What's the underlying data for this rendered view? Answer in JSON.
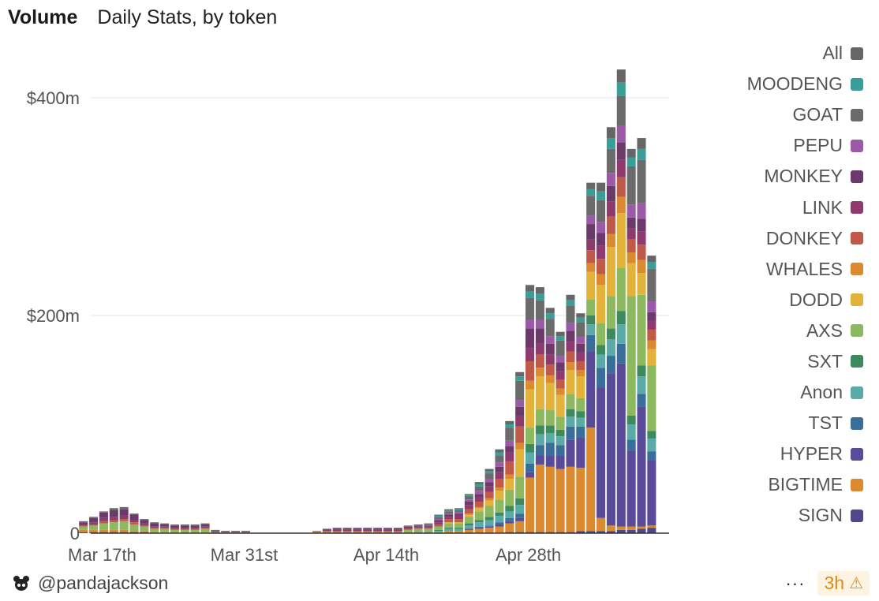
{
  "header": {
    "title": "Volume",
    "subtitle": "Daily Stats, by token"
  },
  "footer": {
    "author": "@pandajackson",
    "more_label": "···",
    "staleness": "3h",
    "warn_icon": "warning-icon"
  },
  "colors": {
    "All": "#666666",
    "MOODENG": "#3a9e98",
    "GOAT": "#6b6b6b",
    "PEPU": "#9b59a7",
    "MONKEY": "#6b3a6b",
    "LINK": "#8e3a6e",
    "DONKEY": "#c05a48",
    "WHALES": "#dc8a30",
    "DODD": "#e2b23a",
    "AXS": "#8cb860",
    "SXT": "#3e8a5e",
    "Anon": "#5aaaa8",
    "TST": "#3a6e9a",
    "HYPER": "#5a4a9a",
    "BIGTIME": "#dc8a30",
    "SIGN": "#4e4a8a"
  },
  "chart_data": {
    "type": "bar",
    "stacked": true,
    "title": "Volume",
    "subtitle": "Daily Stats, by token",
    "y_ticks": [
      {
        "value": 0,
        "label": "0"
      },
      {
        "value": 200,
        "label": "$200m"
      },
      {
        "value": 400,
        "label": "$400m"
      }
    ],
    "ylim": [
      0,
      400
    ],
    "y_unit": "$m",
    "grid": true,
    "legend_position": "right",
    "x_ticks": [
      {
        "day": 0,
        "label": "Mar 17th"
      },
      {
        "day": 14,
        "label": "Mar 31st"
      },
      {
        "day": 28,
        "label": "Apr 14th"
      },
      {
        "day": 42,
        "label": "Apr 28th"
      }
    ],
    "x_start": "Mar 15",
    "x_end": "May 10",
    "legend": [
      "All",
      "MOODENG",
      "GOAT",
      "PEPU",
      "MONKEY",
      "LINK",
      "DONKEY",
      "WHALES",
      "DODD",
      "AXS",
      "SXT",
      "Anon",
      "TST",
      "HYPER",
      "BIGTIME",
      "SIGN"
    ],
    "categories": [
      "Mar 15",
      "Mar 16",
      "Mar 17",
      "Mar 18",
      "Mar 19",
      "Mar 20",
      "Mar 21",
      "Mar 22",
      "Mar 23",
      "Mar 24",
      "Mar 25",
      "Mar 26",
      "Mar 27",
      "Mar 28",
      "Mar 29",
      "Mar 30",
      "Mar 31",
      "Apr 1",
      "Apr 2",
      "Apr 3",
      "Apr 4",
      "Apr 5",
      "Apr 6",
      "Apr 7",
      "Apr 8",
      "Apr 9",
      "Apr 10",
      "Apr 11",
      "Apr 12",
      "Apr 13",
      "Apr 14",
      "Apr 15",
      "Apr 16",
      "Apr 17",
      "Apr 18",
      "Apr 19",
      "Apr 20",
      "Apr 21",
      "Apr 22",
      "Apr 23",
      "Apr 24",
      "Apr 25",
      "Apr 26",
      "Apr 27",
      "Apr 28",
      "Apr 29",
      "Apr 30",
      "May 1",
      "May 2",
      "May 3",
      "May 4",
      "May 5",
      "May 6",
      "May 7",
      "May 8",
      "May 9",
      "May 10"
    ],
    "series": [
      {
        "name": "SIGN",
        "values": [
          1,
          1,
          1,
          1,
          1,
          1,
          1,
          0,
          0,
          0,
          0,
          0,
          0,
          0,
          0,
          0,
          0,
          0,
          0,
          0,
          0,
          0,
          0,
          0,
          0,
          0,
          0,
          0,
          0,
          0,
          0,
          0,
          0,
          0,
          0,
          0,
          0,
          0,
          0,
          0,
          0,
          0,
          1,
          1,
          1,
          1,
          1,
          1,
          1,
          2,
          2,
          2,
          2,
          3,
          3,
          4,
          5
        ]
      },
      {
        "name": "BIGTIME",
        "values": [
          2,
          2,
          2,
          2,
          2,
          1,
          1,
          1,
          1,
          1,
          1,
          1,
          1,
          0,
          0,
          0,
          0,
          0,
          0,
          0,
          0,
          0,
          0,
          0,
          0,
          0,
          0,
          0,
          0,
          0,
          0,
          0,
          1,
          1,
          1,
          1,
          2,
          2,
          3,
          4,
          5,
          6,
          8,
          10,
          50,
          62,
          60,
          58,
          60,
          58,
          95,
          12,
          5,
          3,
          3,
          2,
          2
        ]
      },
      {
        "name": "HYPER",
        "values": [
          0,
          0,
          0,
          0,
          0,
          0,
          0,
          0,
          0,
          0,
          0,
          0,
          0,
          0,
          0,
          0,
          0,
          0,
          0,
          0,
          0,
          0,
          0,
          0,
          0,
          0,
          0,
          0,
          0,
          0,
          0,
          0,
          0,
          0,
          0,
          0,
          0,
          0,
          1,
          1,
          1,
          2,
          2,
          3,
          5,
          8,
          10,
          12,
          25,
          28,
          70,
          120,
          140,
          150,
          70,
          110,
          60
        ]
      },
      {
        "name": "TST",
        "values": [
          0,
          0,
          0,
          0,
          0,
          0,
          0,
          0,
          0,
          0,
          0,
          0,
          0,
          0,
          0,
          0,
          0,
          0,
          0,
          0,
          0,
          0,
          0,
          0,
          0,
          0,
          0,
          0,
          0,
          0,
          0,
          0,
          0,
          0,
          0,
          0,
          0,
          0,
          0,
          1,
          1,
          2,
          3,
          4,
          8,
          10,
          12,
          10,
          12,
          10,
          15,
          18,
          16,
          18,
          10,
          12,
          8
        ]
      },
      {
        "name": "Anon",
        "values": [
          0,
          0,
          0,
          0,
          0,
          0,
          0,
          0,
          0,
          0,
          0,
          0,
          0,
          0,
          0,
          0,
          0,
          0,
          0,
          0,
          0,
          0,
          0,
          0,
          0,
          0,
          0,
          0,
          0,
          0,
          0,
          0,
          0,
          1,
          1,
          1,
          2,
          2,
          3,
          4,
          5,
          6,
          6,
          8,
          10,
          10,
          9,
          8,
          9,
          8,
          10,
          12,
          15,
          18,
          14,
          16,
          12
        ]
      },
      {
        "name": "SXT",
        "values": [
          0,
          0,
          0,
          0,
          0,
          0,
          0,
          0,
          0,
          0,
          0,
          0,
          0,
          0,
          0,
          0,
          0,
          0,
          0,
          0,
          0,
          0,
          0,
          0,
          0,
          0,
          0,
          0,
          0,
          0,
          0,
          0,
          0,
          0,
          0,
          1,
          1,
          1,
          2,
          2,
          3,
          3,
          5,
          6,
          8,
          8,
          7,
          6,
          7,
          6,
          8,
          9,
          10,
          12,
          8,
          10,
          7
        ]
      },
      {
        "name": "AXS",
        "values": [
          3,
          4,
          6,
          7,
          8,
          6,
          4,
          3,
          3,
          2,
          2,
          2,
          3,
          1,
          1,
          1,
          1,
          0,
          0,
          0,
          0,
          0,
          0,
          1,
          1,
          1,
          1,
          1,
          1,
          1,
          1,
          1,
          2,
          2,
          2,
          3,
          4,
          4,
          6,
          8,
          10,
          12,
          15,
          20,
          15,
          15,
          14,
          12,
          14,
          12,
          15,
          20,
          30,
          40,
          110,
          65,
          60
        ]
      },
      {
        "name": "DODD",
        "values": [
          0,
          0,
          0,
          0,
          0,
          0,
          0,
          0,
          0,
          0,
          0,
          0,
          0,
          0,
          0,
          0,
          0,
          0,
          0,
          0,
          0,
          0,
          0,
          0,
          0,
          0,
          0,
          0,
          0,
          0,
          0,
          0,
          0,
          0,
          0,
          0,
          1,
          1,
          2,
          3,
          5,
          8,
          10,
          25,
          35,
          30,
          25,
          20,
          22,
          20,
          25,
          35,
          45,
          50,
          30,
          20,
          15
        ]
      },
      {
        "name": "WHALES",
        "values": [
          0,
          0,
          0,
          0,
          0,
          0,
          0,
          0,
          0,
          0,
          0,
          0,
          0,
          0,
          0,
          0,
          0,
          0,
          0,
          0,
          0,
          0,
          0,
          0,
          0,
          0,
          0,
          0,
          0,
          0,
          0,
          0,
          0,
          0,
          0,
          0,
          0,
          0,
          1,
          1,
          2,
          3,
          4,
          6,
          8,
          8,
          7,
          6,
          7,
          6,
          8,
          10,
          12,
          15,
          10,
          12,
          8
        ]
      },
      {
        "name": "DONKEY",
        "values": [
          1,
          1,
          2,
          2,
          2,
          2,
          1,
          1,
          1,
          1,
          1,
          1,
          1,
          0,
          0,
          0,
          0,
          0,
          0,
          0,
          0,
          0,
          0,
          1,
          1,
          1,
          1,
          1,
          1,
          1,
          1,
          1,
          1,
          1,
          1,
          2,
          3,
          3,
          4,
          5,
          6,
          8,
          12,
          15,
          18,
          12,
          10,
          8,
          10,
          8,
          12,
          14,
          16,
          18,
          12,
          14,
          10
        ]
      },
      {
        "name": "LINK",
        "values": [
          1,
          2,
          3,
          3,
          3,
          2,
          2,
          1,
          1,
          1,
          1,
          1,
          1,
          0,
          0,
          0,
          0,
          0,
          0,
          0,
          0,
          0,
          0,
          0,
          1,
          1,
          1,
          1,
          1,
          1,
          1,
          1,
          1,
          1,
          1,
          2,
          2,
          3,
          4,
          4,
          5,
          6,
          8,
          10,
          12,
          10,
          9,
          8,
          9,
          8,
          10,
          12,
          14,
          16,
          10,
          12,
          8
        ]
      },
      {
        "name": "MONKEY",
        "values": [
          2,
          4,
          5,
          6,
          6,
          5,
          3,
          3,
          2,
          2,
          2,
          2,
          2,
          1,
          1,
          1,
          1,
          0,
          0,
          0,
          0,
          0,
          0,
          0,
          1,
          1,
          1,
          1,
          1,
          1,
          1,
          1,
          1,
          1,
          1,
          2,
          2,
          2,
          3,
          3,
          4,
          5,
          6,
          8,
          18,
          14,
          10,
          8,
          10,
          8,
          14,
          12,
          14,
          16,
          10,
          12,
          8
        ]
      },
      {
        "name": "PEPU",
        "values": [
          0,
          0,
          0,
          0,
          0,
          0,
          0,
          0,
          0,
          0,
          0,
          0,
          0,
          0,
          0,
          0,
          0,
          0,
          0,
          0,
          0,
          0,
          0,
          0,
          0,
          0,
          0,
          0,
          0,
          0,
          0,
          0,
          0,
          0,
          1,
          1,
          1,
          1,
          2,
          3,
          3,
          4,
          5,
          6,
          8,
          8,
          7,
          6,
          7,
          6,
          8,
          10,
          12,
          15,
          12,
          14,
          10
        ]
      },
      {
        "name": "GOAT",
        "values": [
          1,
          1,
          1,
          2,
          2,
          1,
          1,
          1,
          1,
          1,
          1,
          1,
          1,
          1,
          0,
          0,
          0,
          0,
          0,
          0,
          0,
          0,
          0,
          0,
          0,
          1,
          1,
          1,
          1,
          1,
          1,
          1,
          1,
          1,
          1,
          2,
          2,
          2,
          3,
          4,
          5,
          6,
          12,
          18,
          20,
          18,
          16,
          14,
          16,
          14,
          18,
          20,
          22,
          28,
          35,
          40,
          30
        ]
      },
      {
        "name": "MOODENG",
        "values": [
          0,
          0,
          0,
          0,
          0,
          0,
          0,
          0,
          0,
          0,
          0,
          0,
          0,
          0,
          0,
          0,
          0,
          0,
          0,
          0,
          0,
          0,
          0,
          0,
          0,
          0,
          0,
          0,
          0,
          0,
          0,
          0,
          0,
          0,
          0,
          1,
          1,
          1,
          1,
          2,
          2,
          3,
          3,
          4,
          6,
          6,
          5,
          4,
          5,
          4,
          6,
          8,
          10,
          12,
          8,
          10,
          6
        ]
      },
      {
        "name": "All",
        "values": [
          0,
          0,
          0,
          0,
          0,
          0,
          0,
          0,
          0,
          0,
          0,
          0,
          0,
          0,
          0,
          0,
          0,
          0,
          0,
          0,
          0,
          0,
          0,
          0,
          0,
          0,
          0,
          0,
          0,
          0,
          0,
          0,
          0,
          0,
          0,
          1,
          1,
          1,
          1,
          2,
          2,
          3,
          3,
          4,
          6,
          6,
          5,
          4,
          5,
          4,
          6,
          8,
          10,
          12,
          8,
          10,
          6
        ]
      }
    ]
  }
}
